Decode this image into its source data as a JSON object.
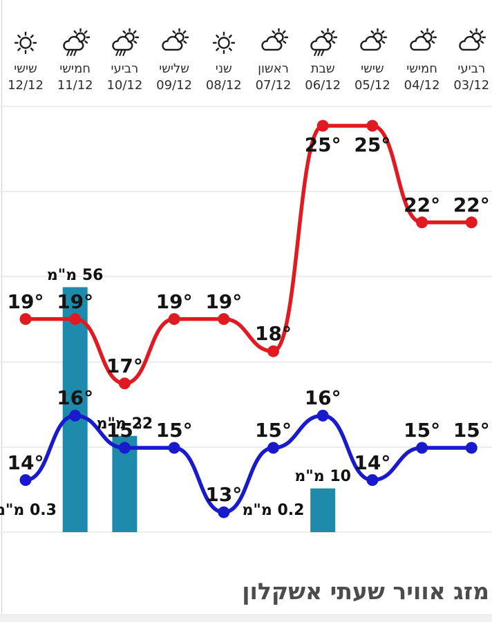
{
  "header": {
    "columns": [
      {
        "day": "שישי",
        "date": "12/12",
        "icon": "sun-icon"
      },
      {
        "day": "חמישי",
        "date": "11/12",
        "icon": "sun-rain-icon"
      },
      {
        "day": "רביעי",
        "date": "10/12",
        "icon": "sun-rain-icon"
      },
      {
        "day": "שלישי",
        "date": "09/12",
        "icon": "sun-cloud-icon"
      },
      {
        "day": "שני",
        "date": "08/12",
        "icon": "sun-icon"
      },
      {
        "day": "ראשון",
        "date": "07/12",
        "icon": "sun-cloud-icon"
      },
      {
        "day": "שבת",
        "date": "06/12",
        "icon": "sun-rain-icon"
      },
      {
        "day": "שישי",
        "date": "05/12",
        "icon": "sun-cloud-icon"
      },
      {
        "day": "חמישי",
        "date": "04/12",
        "icon": "sun-cloud-icon"
      },
      {
        "day": "רביעי",
        "date": "03/12",
        "icon": "sun-cloud-icon"
      }
    ]
  },
  "chart_data": {
    "type": "line+bar",
    "direction": "rtl",
    "grid": true,
    "categories": [
      "12/12",
      "11/12",
      "10/12",
      "09/12",
      "08/12",
      "07/12",
      "06/12",
      "05/12",
      "04/12",
      "03/12"
    ],
    "series": [
      {
        "name": "high_temperature",
        "type": "line",
        "color": "#e01a20",
        "values": [
          19,
          19,
          17,
          19,
          19,
          18,
          25,
          25,
          22,
          22
        ]
      },
      {
        "name": "low_temperature",
        "type": "line",
        "color": "#1a1acd",
        "values": [
          14,
          16,
          15,
          15,
          13,
          15,
          16,
          14,
          15,
          15
        ]
      },
      {
        "name": "precipitation_mm",
        "type": "bar",
        "color": "#1e8bac",
        "values": [
          0.3,
          56,
          22,
          null,
          null,
          0.2,
          10,
          null,
          null,
          null
        ]
      }
    ],
    "degree_suffix": "°",
    "precip_unit": "מ\"מ",
    "colors": {
      "high_line": "#e01a20",
      "low_line": "#1a1acd",
      "precip_bar": "#1e8bac",
      "gridline": "#ececec"
    }
  },
  "footer": {
    "title": "מזג אוויר שעתי אשקלון"
  }
}
